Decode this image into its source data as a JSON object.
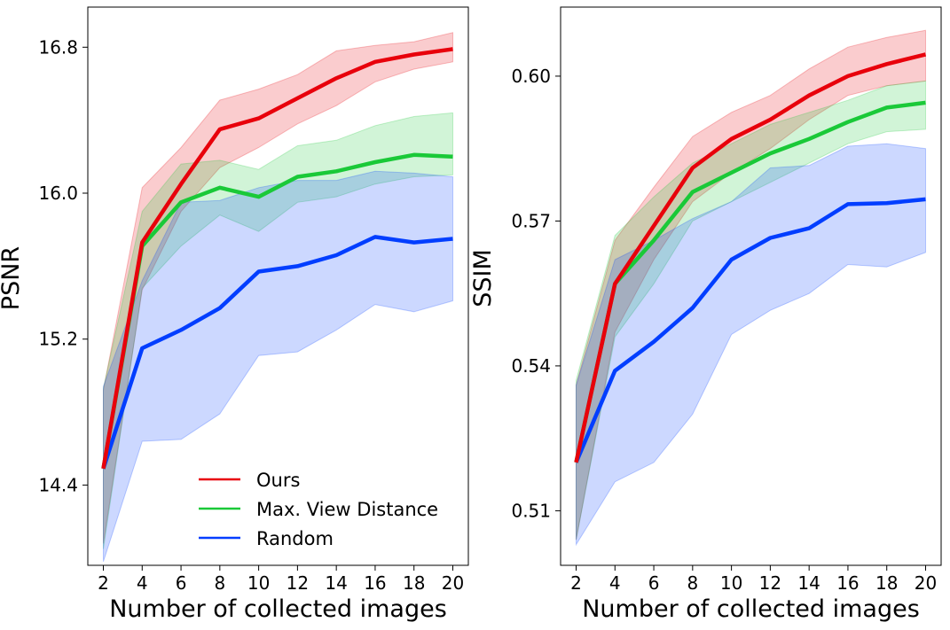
{
  "legend": {
    "location": "lower-center of left panel",
    "entries": [
      {
        "name": "Ours",
        "color": "#e8000b"
      },
      {
        "name": "Max. View Distance",
        "color": "#1ac938"
      },
      {
        "name": "Random",
        "color": "#023eff"
      }
    ]
  },
  "chart_data": [
    {
      "type": "line",
      "title": "",
      "xlabel": "Number of collected images",
      "ylabel": "PSNR",
      "x": [
        2,
        4,
        6,
        8,
        10,
        12,
        14,
        16,
        18,
        20
      ],
      "xticks": [
        2,
        4,
        6,
        8,
        10,
        12,
        14,
        16,
        18,
        20
      ],
      "xlim": [
        1.2,
        20.8
      ],
      "yticks": [
        14.4,
        15.2,
        16.0,
        16.8
      ],
      "ytick_labels": [
        "14.4",
        "15.2",
        "16.0",
        "16.8"
      ],
      "ylim": [
        13.96,
        17.02
      ],
      "grid": false,
      "series": [
        {
          "name": "Ours",
          "color": "#e8000b",
          "values": [
            14.49,
            15.73,
            16.05,
            16.35,
            16.41,
            16.52,
            16.63,
            16.72,
            16.76,
            16.79
          ],
          "lower": [
            14.08,
            15.47,
            15.9,
            16.14,
            16.25,
            16.38,
            16.48,
            16.61,
            16.68,
            16.72
          ],
          "upper": [
            14.92,
            16.03,
            16.25,
            16.51,
            16.57,
            16.65,
            16.78,
            16.81,
            16.83,
            16.88
          ]
        },
        {
          "name": "Max. View Distance",
          "color": "#1ac938",
          "values": [
            14.49,
            15.71,
            15.95,
            16.03,
            15.98,
            16.09,
            16.12,
            16.17,
            16.21,
            16.2
          ],
          "lower": [
            14.05,
            15.48,
            15.71,
            15.88,
            15.79,
            15.95,
            15.98,
            16.05,
            16.09,
            16.1
          ],
          "upper": [
            14.93,
            15.9,
            16.16,
            16.18,
            16.13,
            16.26,
            16.29,
            16.37,
            16.42,
            16.44
          ]
        },
        {
          "name": "Random",
          "color": "#023eff",
          "values": [
            14.49,
            15.15,
            15.25,
            15.37,
            15.57,
            15.6,
            15.66,
            15.76,
            15.73,
            15.75
          ],
          "lower": [
            13.98,
            14.64,
            14.65,
            14.79,
            15.11,
            15.13,
            15.25,
            15.39,
            15.35,
            15.41
          ],
          "upper": [
            14.94,
            15.52,
            15.95,
            15.96,
            16.03,
            16.07,
            16.07,
            16.12,
            16.11,
            16.09
          ]
        }
      ]
    },
    {
      "type": "line",
      "title": "",
      "xlabel": "Number of collected images",
      "ylabel": "SSIM",
      "x": [
        2,
        4,
        6,
        8,
        10,
        12,
        14,
        16,
        18,
        20
      ],
      "xticks": [
        2,
        4,
        6,
        8,
        10,
        12,
        14,
        16,
        18,
        20
      ],
      "xlim": [
        1.2,
        20.8
      ],
      "yticks": [
        0.51,
        0.54,
        0.57,
        0.6
      ],
      "ytick_labels": [
        "0.51",
        "0.54",
        "0.57",
        "0.60"
      ],
      "ylim": [
        0.4987,
        0.6143
      ],
      "grid": false,
      "series": [
        {
          "name": "Ours",
          "color": "#e8000b",
          "values": [
            0.52,
            0.557,
            0.569,
            0.581,
            0.587,
            0.591,
            0.596,
            0.6,
            0.6025,
            0.6045
          ],
          "lower": [
            0.504,
            0.547,
            0.562,
            0.574,
            0.58,
            0.585,
            0.591,
            0.596,
            0.598,
            0.599
          ],
          "upper": [
            0.536,
            0.566,
            0.577,
            0.5875,
            0.5925,
            0.596,
            0.6015,
            0.606,
            0.608,
            0.6095
          ]
        },
        {
          "name": "Max. View Distance",
          "color": "#1ac938",
          "values": [
            0.52,
            0.557,
            0.566,
            0.576,
            0.58,
            0.584,
            0.587,
            0.5905,
            0.5935,
            0.5945
          ],
          "lower": [
            0.504,
            0.546,
            0.557,
            0.57,
            0.574,
            0.578,
            0.582,
            0.586,
            0.5885,
            0.589
          ],
          "upper": [
            0.537,
            0.567,
            0.575,
            0.582,
            0.586,
            0.59,
            0.5925,
            0.595,
            0.598,
            0.599
          ]
        },
        {
          "name": "Random",
          "color": "#023eff",
          "values": [
            0.52,
            0.539,
            0.545,
            0.552,
            0.562,
            0.5665,
            0.5685,
            0.5735,
            0.5737,
            0.5745
          ],
          "lower": [
            0.503,
            0.516,
            0.52,
            0.53,
            0.5465,
            0.5515,
            0.555,
            0.561,
            0.5605,
            0.5635
          ],
          "upper": [
            0.536,
            0.562,
            0.566,
            0.5705,
            0.574,
            0.581,
            0.5815,
            0.5855,
            0.586,
            0.585
          ]
        }
      ]
    }
  ]
}
